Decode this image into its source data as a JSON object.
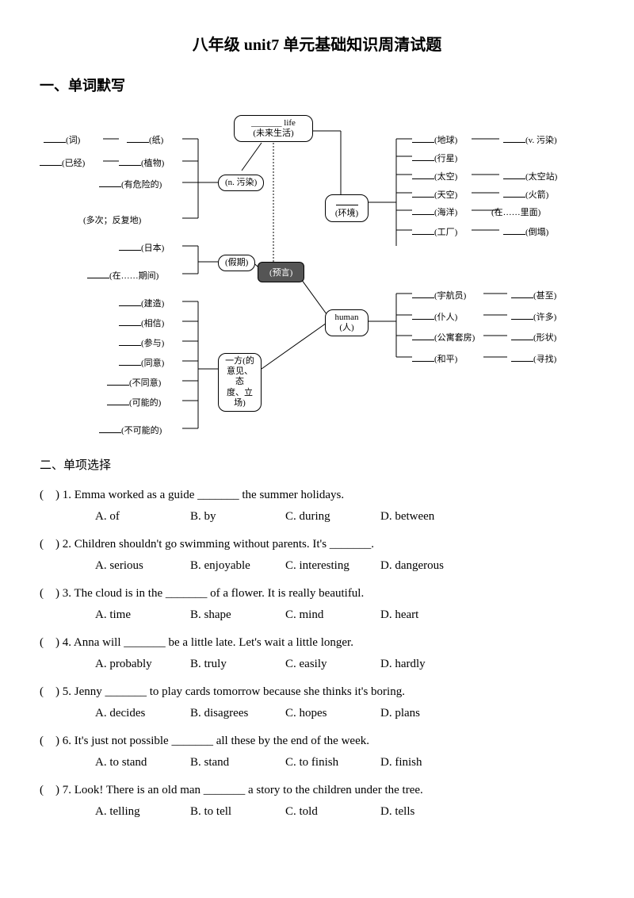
{
  "title": "八年级 unit7 单元基础知识周清试题",
  "section1_header": "一、单词默写",
  "section2_header": "二、单项选择",
  "diagram": {
    "center_top": "_______ life",
    "center_top_sub": "(未来生活)",
    "center_main": "(预言)",
    "pollution_node": "(n. 污染)",
    "env_node": "(环境)",
    "human_node_en": "human",
    "human_node_cn": "(人)",
    "holiday_node": "(假期)",
    "side_node_1": "一方(的",
    "side_node_2": "意见、态",
    "side_node_3": "度、立场)",
    "left_labels": {
      "word": "(词)",
      "paper": "(纸)",
      "already": "(已经)",
      "plant": "(植物)",
      "dangerous": "(有危险的)",
      "repeatedly": "(多次；反复地)",
      "japan": "(日本)",
      "during": "(在……期间)",
      "build": "(建造)",
      "believe": "(相信)",
      "participate": "(参与)",
      "agree": "(同意)",
      "disagree": "(不同意)",
      "possible": "(可能的)",
      "impossible": "(不可能的)"
    },
    "right_labels": {
      "earth": "(地球)",
      "pollute_v": "(v. 污染)",
      "planet": "(行星)",
      "space": "(太空)",
      "space_station": "(太空站)",
      "sky": "(天空)",
      "rocket": "(火箭)",
      "ocean": "(海洋)",
      "inside": "(在……里面)",
      "factory": "(工厂)",
      "fall": "(倒塌)",
      "astronaut": "(宇航员)",
      "even": "(甚至)",
      "servant": "(仆人)",
      "many": "(许多)",
      "apartment": "(公寓套房)",
      "shape": "(形状)",
      "peace": "(和平)",
      "look_for": "(寻找)"
    }
  },
  "questions": [
    {
      "num": "1",
      "stem": "Emma worked as a guide _______ the summer holidays.",
      "opts": {
        "A": "of",
        "B": "by",
        "C": "during",
        "D": "between"
      }
    },
    {
      "num": "2",
      "stem": "Children shouldn't go swimming without parents. It's _______.",
      "opts": {
        "A": "serious",
        "B": "enjoyable",
        "C": "interesting",
        "D": "dangerous"
      }
    },
    {
      "num": "3",
      "stem": "The cloud is in the _______ of a flower. It is really beautiful.",
      "opts": {
        "A": "time",
        "B": "shape",
        "C": "mind",
        "D": "heart"
      }
    },
    {
      "num": "4",
      "stem": "Anna will _______ be a little late. Let's wait a little longer.",
      "opts": {
        "A": "probably",
        "B": "truly",
        "C": "easily",
        "D": "hardly"
      }
    },
    {
      "num": "5",
      "stem": "Jenny _______ to play cards tomorrow because she thinks it's boring.",
      "opts": {
        "A": "decides",
        "B": "disagrees",
        "C": "hopes",
        "D": "plans"
      }
    },
    {
      "num": "6",
      "stem": "It's just not possible _______ all these by the end of the week.",
      "opts": {
        "A": "to stand",
        "B": "stand",
        "C": "to finish",
        "D": "finish"
      }
    },
    {
      "num": "7",
      "stem": "Look! There is an old man _______ a story to the children under the tree.",
      "opts": {
        "A": "telling",
        "B": "to tell",
        "C": "told",
        "D": "tells"
      }
    }
  ],
  "colors": {
    "text": "#000000",
    "background": "#ffffff",
    "node_dark_bg": "#555555",
    "node_border": "#000000"
  }
}
